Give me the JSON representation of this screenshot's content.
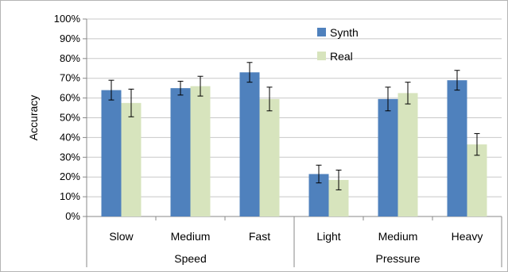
{
  "chart_data": {
    "type": "bar",
    "title": "",
    "ylabel": "Accuracy",
    "ylim": [
      0,
      100
    ],
    "yticks": [
      "0%",
      "10%",
      "20%",
      "30%",
      "40%",
      "50%",
      "60%",
      "70%",
      "80%",
      "90%",
      "100%"
    ],
    "categories": [
      "Slow",
      "Medium",
      "Fast",
      "Light",
      "Medium",
      "Heavy"
    ],
    "groups": [
      {
        "label": "Speed",
        "categories": [
          "Slow",
          "Medium",
          "Fast"
        ]
      },
      {
        "label": "Pressure",
        "categories": [
          "Light",
          "Medium",
          "Heavy"
        ]
      }
    ],
    "series": [
      {
        "name": "Synth",
        "color": "#4f81bd",
        "values": [
          64,
          65,
          73,
          21.5,
          59.5,
          69
        ],
        "errors": [
          5,
          3.5,
          5,
          4.5,
          6,
          5
        ]
      },
      {
        "name": "Real",
        "color": "#d7e4bd",
        "values": [
          57.5,
          66,
          59.5,
          18.5,
          62.5,
          36.5
        ],
        "errors": [
          7,
          5,
          6,
          5,
          5.5,
          5.5
        ]
      }
    ],
    "grid": true,
    "legend": "top-center"
  }
}
